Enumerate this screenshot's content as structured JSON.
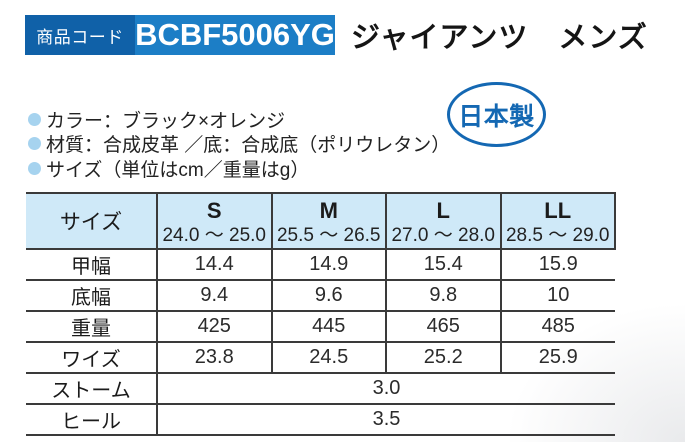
{
  "header": {
    "code_label": "商品コード",
    "code": "BCBF5006YG",
    "title": "ジャイアンツ　メンズ"
  },
  "badge": {
    "text": "日本製"
  },
  "specs": [
    "カラー：ブラック×オレンジ",
    "材質：合成皮革 ／底：合成底（ポリウレタン）",
    "サイズ（単位はcm／重量はg）"
  ],
  "table": {
    "corner_label": "サイズ",
    "columns": [
      {
        "size": "S",
        "range": "24.0 ～ 25.0"
      },
      {
        "size": "M",
        "range": "25.5 ～ 26.5"
      },
      {
        "size": "L",
        "range": "27.0 ～ 28.0"
      },
      {
        "size": "LL",
        "range": "28.5 ～ 29.0"
      }
    ],
    "rows": [
      {
        "label": "甲幅",
        "values": [
          "14.4",
          "14.9",
          "15.4",
          "15.9"
        ]
      },
      {
        "label": "底幅",
        "values": [
          "9.4",
          "9.6",
          "9.8",
          "10"
        ]
      },
      {
        "label": "重量",
        "values": [
          "425",
          "445",
          "465",
          "485"
        ]
      },
      {
        "label": "ワイズ",
        "values": [
          "23.8",
          "24.5",
          "25.2",
          "25.9"
        ]
      }
    ],
    "merged": [
      {
        "label": "ストーム",
        "value": "3.0"
      },
      {
        "label": "ヒール",
        "value": "3.5"
      }
    ]
  },
  "colors": {
    "bar_label_blue": "#1061a8",
    "bar_code_blue": "#1c7ec6",
    "badge_blue": "#1468b3",
    "table_header_bg": "#cfe9f8",
    "bullet_blue": "#a6d3ef",
    "border": "#3a3a3a"
  }
}
